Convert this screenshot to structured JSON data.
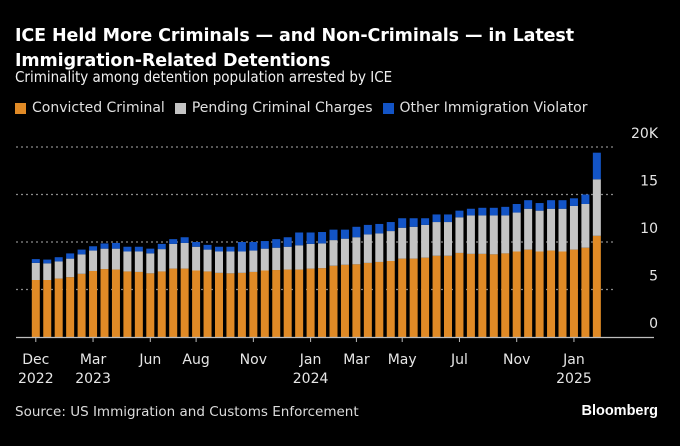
{
  "header": {
    "title": "ICE Held More Criminals — and Non-Criminals — in Latest Immigration-Related Detentions",
    "subtitle": "Criminality among detention population arrested by ICE"
  },
  "footer": {
    "source": "Source: US Immigration and Customs Enforcement",
    "logo": "Bloomberg"
  },
  "chart_data": {
    "type": "bar",
    "stacked": true,
    "title": "ICE Held More Criminals — and Non-Criminals — in Latest Immigration-Related Detentions",
    "subtitle": "Criminality among detention population arrested by ICE",
    "xlabel": "",
    "ylabel": "",
    "ylim": [
      0,
      20000
    ],
    "y_ticks": [
      {
        "value": 0,
        "label": "0"
      },
      {
        "value": 5000,
        "label": "5"
      },
      {
        "value": 10000,
        "label": "10"
      },
      {
        "value": 15000,
        "label": "15"
      },
      {
        "value": 20000,
        "label": "20K"
      }
    ],
    "y_axis_side": "right",
    "grid": true,
    "legend_position": "top-left",
    "x_ticks": [
      {
        "index": 0,
        "label": "Dec",
        "year": "2022"
      },
      {
        "index": 5,
        "label": "Mar",
        "year": "2023"
      },
      {
        "index": 10,
        "label": "Jun",
        "year": ""
      },
      {
        "index": 14,
        "label": "Aug",
        "year": ""
      },
      {
        "index": 19,
        "label": "Nov",
        "year": ""
      },
      {
        "index": 24,
        "label": "Jan",
        "year": "2024"
      },
      {
        "index": 28,
        "label": "Mar",
        "year": ""
      },
      {
        "index": 32,
        "label": "May",
        "year": ""
      },
      {
        "index": 37,
        "label": "Jul",
        "year": ""
      },
      {
        "index": 42,
        "label": "Nov",
        "year": ""
      },
      {
        "index": 47,
        "label": "Jan",
        "year": "2025"
      }
    ],
    "series": [
      {
        "name": "Convicted Criminal",
        "color": "#e08a26",
        "values": [
          6000,
          6000,
          6150,
          6300,
          6650,
          6950,
          7150,
          7100,
          6900,
          6850,
          6700,
          6900,
          7200,
          7200,
          7000,
          6900,
          6750,
          6700,
          6750,
          6850,
          7000,
          7050,
          7100,
          7100,
          7200,
          7250,
          7500,
          7600,
          7650,
          7800,
          7900,
          8000,
          8250,
          8250,
          8350,
          8550,
          8550,
          8850,
          8750,
          8750,
          8700,
          8800,
          9000,
          9200,
          9000,
          9100,
          9000,
          9200,
          9400,
          10650
        ]
      },
      {
        "name": "Pending Criminal Charges",
        "color": "#c4c4c4",
        "values": [
          1800,
          1750,
          1800,
          1950,
          2050,
          2150,
          2150,
          2200,
          2100,
          2150,
          2100,
          2350,
          2600,
          2700,
          2500,
          2300,
          2250,
          2300,
          2250,
          2250,
          2300,
          2350,
          2400,
          2550,
          2600,
          2600,
          2700,
          2750,
          2850,
          3000,
          3000,
          3150,
          3250,
          3350,
          3450,
          3550,
          3550,
          3750,
          4050,
          4050,
          4100,
          4000,
          4100,
          4300,
          4300,
          4400,
          4500,
          4600,
          4600,
          5950
        ]
      },
      {
        "name": "Other Immigration Violator",
        "color": "#1354c6",
        "values": [
          400,
          400,
          450,
          550,
          500,
          450,
          550,
          600,
          500,
          500,
          500,
          550,
          500,
          600,
          500,
          500,
          500,
          500,
          1000,
          900,
          800,
          900,
          1000,
          1350,
          1200,
          1200,
          1100,
          950,
          1100,
          1000,
          1000,
          950,
          1000,
          900,
          700,
          800,
          800,
          700,
          700,
          800,
          800,
          900,
          900,
          900,
          800,
          900,
          900,
          800,
          1000,
          2800
        ]
      }
    ]
  }
}
